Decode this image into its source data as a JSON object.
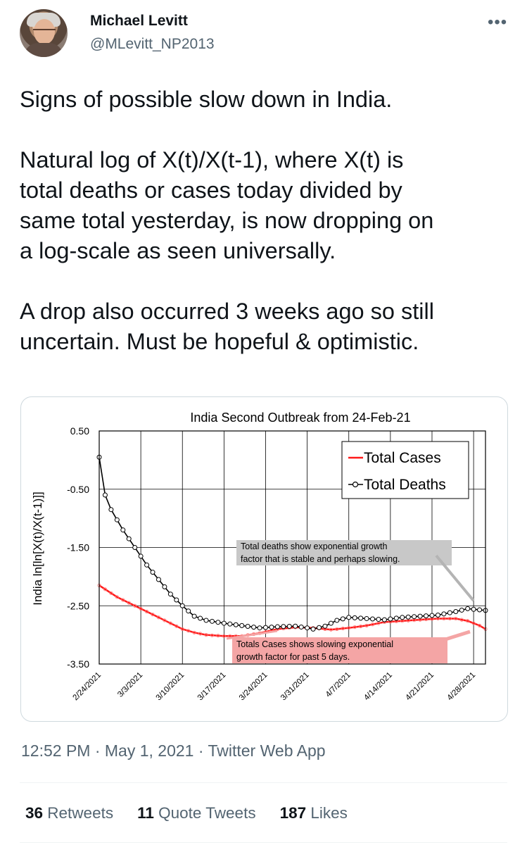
{
  "author": {
    "display_name": "Michael Levitt",
    "handle": "@MLevitt_NP2013",
    "more_icon": "more-icon"
  },
  "tweet": {
    "paragraphs": [
      "Signs of possible slow down in India.",
      "Natural log of X(t)/X(t-1), where X(t) is\ntotal deaths or cases today divided by\nsame total yesterday, is now dropping on\na log-scale as seen universally.",
      "A drop also occurred 3 weeks ago so still\nuncertain.  Must be hopeful & optimistic."
    ]
  },
  "chart_data": {
    "type": "line",
    "title": "India Second Outbreak from 24-Feb-21",
    "ylabel": "India ln[ln[X(t)/X(t-1)]]",
    "ylim": [
      -3.5,
      0.5
    ],
    "yticks": [
      "0.50",
      "-0.50",
      "-1.50",
      "-2.50",
      "-3.50"
    ],
    "xlabels": [
      "2/24/2021",
      "3/3/2021",
      "3/10/2021",
      "3/17/2021",
      "3/24/2021",
      "3/31/2021",
      "4/7/2021",
      "4/14/2021",
      "4/21/2021",
      "4/28/2021"
    ],
    "days": 65,
    "grid": true,
    "legend_position": "top-right",
    "colors": {
      "cases": "#ff1a1a",
      "deaths": "#000000"
    },
    "series": [
      {
        "name": "Total Cases",
        "key_points": [
          [
            0,
            -2.15
          ],
          [
            3,
            -2.35
          ],
          [
            7,
            -2.55
          ],
          [
            10,
            -2.7
          ],
          [
            12,
            -2.8
          ],
          [
            14,
            -2.9
          ],
          [
            16,
            -2.96
          ],
          [
            18,
            -3.0
          ],
          [
            21,
            -3.02
          ],
          [
            24,
            -3.02
          ],
          [
            27,
            -2.97
          ],
          [
            30,
            -2.9
          ],
          [
            33,
            -2.87
          ],
          [
            36,
            -2.88
          ],
          [
            39,
            -2.91
          ],
          [
            42,
            -2.88
          ],
          [
            45,
            -2.84
          ],
          [
            48,
            -2.78
          ],
          [
            51,
            -2.76
          ],
          [
            54,
            -2.74
          ],
          [
            57,
            -2.72
          ],
          [
            60,
            -2.72
          ],
          [
            62,
            -2.76
          ],
          [
            64,
            -2.84
          ],
          [
            65,
            -2.9
          ]
        ]
      },
      {
        "name": "Total Deaths",
        "key_points": [
          [
            0,
            0.05
          ],
          [
            1,
            -0.6
          ],
          [
            2,
            -0.85
          ],
          [
            4,
            -1.2
          ],
          [
            6,
            -1.5
          ],
          [
            8,
            -1.8
          ],
          [
            10,
            -2.05
          ],
          [
            12,
            -2.3
          ],
          [
            14,
            -2.5
          ],
          [
            16,
            -2.68
          ],
          [
            18,
            -2.75
          ],
          [
            21,
            -2.8
          ],
          [
            24,
            -2.84
          ],
          [
            27,
            -2.88
          ],
          [
            30,
            -2.86
          ],
          [
            33,
            -2.85
          ],
          [
            35,
            -2.88
          ],
          [
            36,
            -2.9
          ],
          [
            38,
            -2.85
          ],
          [
            40,
            -2.75
          ],
          [
            42,
            -2.7
          ],
          [
            45,
            -2.72
          ],
          [
            48,
            -2.74
          ],
          [
            51,
            -2.7
          ],
          [
            54,
            -2.68
          ],
          [
            57,
            -2.66
          ],
          [
            60,
            -2.6
          ],
          [
            62,
            -2.55
          ],
          [
            64,
            -2.57
          ],
          [
            65,
            -2.58
          ]
        ]
      }
    ],
    "annotations": [
      {
        "lines": [
          "Total deaths show exponential growth",
          "factor that is stable and perhaps slowing."
        ]
      },
      {
        "lines": [
          "Totals Cases shows slowing exponential",
          "growth factor for past 5 days."
        ]
      }
    ]
  },
  "footer": {
    "time": "12:52 PM · May 1, 2021 · Twitter Web App",
    "stats": [
      {
        "count": "36",
        "label": "Retweets"
      },
      {
        "count": "11",
        "label": "Quote Tweets"
      },
      {
        "count": "187",
        "label": "Likes"
      }
    ]
  }
}
